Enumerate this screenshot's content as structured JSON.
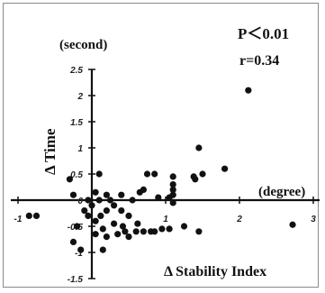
{
  "chart_data": {
    "type": "scatter",
    "y_unit": "(second)",
    "x_unit": "(degree)",
    "ylabel": "Δ Time",
    "xlabel": "Δ Stability Index",
    "stats": {
      "p": "P＜0.01",
      "r": "r=0.34"
    },
    "xlim": [
      -1,
      3
    ],
    "ylim": [
      -1.5,
      2.5
    ],
    "x_ticks": [
      "-1",
      "0",
      "1",
      "2",
      "3"
    ],
    "y_ticks": [
      "2.5",
      "2",
      "1.5",
      "1",
      "0.5",
      "0",
      "-0.5",
      "-1",
      "-1.5"
    ],
    "axis_color": "#111111",
    "point_color": "#111111",
    "series": [
      {
        "points": [
          [
            2.12,
            2.1
          ],
          [
            1.45,
            1.0
          ],
          [
            1.8,
            0.6
          ],
          [
            1.5,
            0.5
          ],
          [
            1.4,
            0.4
          ],
          [
            1.38,
            0.45
          ],
          [
            2.72,
            -0.47
          ],
          [
            1.45,
            -0.6
          ],
          [
            1.25,
            -0.5
          ],
          [
            0.85,
            0.5
          ],
          [
            0.75,
            0.5
          ],
          [
            1.1,
            0.45
          ],
          [
            1.1,
            0.3
          ],
          [
            1.1,
            0.2
          ],
          [
            1.1,
            0.1
          ],
          [
            0.9,
            0.05
          ],
          [
            1.05,
            0.05
          ],
          [
            -0.85,
            -0.3
          ],
          [
            -0.75,
            -0.3
          ],
          [
            -0.3,
            0.4
          ],
          [
            -0.25,
            0.1
          ],
          [
            -0.2,
            -0.5
          ],
          [
            -0.25,
            -0.8
          ],
          [
            -0.15,
            -0.95
          ],
          [
            -0.1,
            -0.2
          ],
          [
            -0.05,
            0.0
          ],
          [
            -0.05,
            -0.3
          ],
          [
            0.0,
            -0.1
          ],
          [
            0.05,
            0.15
          ],
          [
            0.05,
            -0.4
          ],
          [
            0.05,
            -0.65
          ],
          [
            0.1,
            0.5
          ],
          [
            0.1,
            0.0
          ],
          [
            0.12,
            -0.3
          ],
          [
            0.15,
            -0.55
          ],
          [
            0.15,
            -0.95
          ],
          [
            0.2,
            0.1
          ],
          [
            0.2,
            -0.2
          ],
          [
            0.2,
            -0.7
          ],
          [
            0.25,
            0.0
          ],
          [
            0.3,
            -0.1
          ],
          [
            0.3,
            -0.45
          ],
          [
            0.35,
            -0.65
          ],
          [
            0.4,
            0.1
          ],
          [
            0.4,
            -0.2
          ],
          [
            0.42,
            -0.5
          ],
          [
            0.45,
            -0.6
          ],
          [
            0.5,
            -0.3
          ],
          [
            0.5,
            -0.7
          ],
          [
            0.55,
            0.0
          ],
          [
            0.6,
            -0.6
          ],
          [
            0.62,
            -0.45
          ],
          [
            0.7,
            -0.6
          ],
          [
            0.7,
            0.2
          ],
          [
            0.8,
            -0.6
          ],
          [
            0.85,
            -0.6
          ],
          [
            0.95,
            -0.55
          ],
          [
            1.05,
            -0.55
          ],
          [
            1.1,
            -0.05
          ],
          [
            0.65,
            0.15
          ]
        ]
      }
    ]
  }
}
